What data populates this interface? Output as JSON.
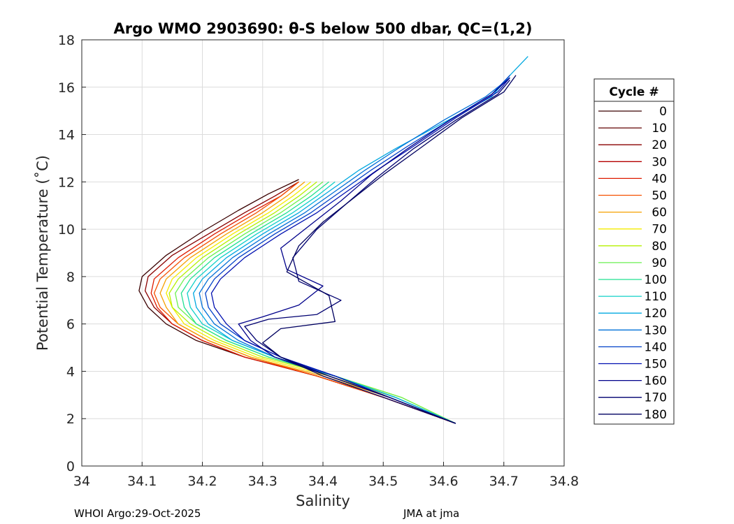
{
  "chart_data": {
    "type": "line",
    "title": "Argo WMO 2903690: θ-S below 500 dbar,  QC=(1,2)",
    "xlabel": "Salinity",
    "ylabel": "Potential Temperature (˚C)",
    "xlim": [
      34,
      34.8
    ],
    "ylim": [
      0,
      18
    ],
    "xticks": [
      "34",
      "34.1",
      "34.2",
      "34.3",
      "34.4",
      "34.5",
      "34.6",
      "34.7",
      "34.8"
    ],
    "yticks": [
      "0",
      "2",
      "4",
      "6",
      "8",
      "10",
      "12",
      "14",
      "16",
      "18"
    ],
    "grid": true,
    "legend": {
      "title": "Cycle #",
      "placement": "right-outside",
      "entries": [
        "0",
        "10",
        "20",
        "30",
        "40",
        "50",
        "60",
        "70",
        "80",
        "90",
        "100",
        "110",
        "120",
        "130",
        "140",
        "150",
        "160",
        "170",
        "180"
      ],
      "colors": [
        "#3a0000",
        "#600000",
        "#8a0000",
        "#b40000",
        "#de1a00",
        "#f55000",
        "#f5a000",
        "#f5ec00",
        "#b4f000",
        "#6af050",
        "#20e090",
        "#10d0c8",
        "#00a8e0",
        "#0070d8",
        "#0040c8",
        "#0010b0",
        "#00008a",
        "#000070",
        "#000060"
      ]
    },
    "series_note": "One theta-S profile per cycle (0-180); values traced from the plot",
    "series": [
      {
        "cycle": 0,
        "color": "#3a0000",
        "s": [
          34.62,
          34.5,
          34.39,
          34.27,
          34.19,
          34.14,
          34.11,
          34.095,
          34.1,
          34.14,
          34.2,
          34.26,
          34.31,
          34.36
        ],
        "t": [
          1.8,
          2.9,
          3.8,
          4.6,
          5.3,
          6.0,
          6.7,
          7.4,
          8.0,
          8.9,
          9.9,
          10.8,
          11.5,
          12.1
        ]
      },
      {
        "cycle": 20,
        "color": "#8a0000",
        "s": [
          34.62,
          34.5,
          34.39,
          34.27,
          34.2,
          34.15,
          34.12,
          34.105,
          34.11,
          34.15,
          34.21,
          34.27,
          34.32,
          34.36
        ],
        "t": [
          1.8,
          2.9,
          3.8,
          4.6,
          5.3,
          6.0,
          6.7,
          7.4,
          8.0,
          8.9,
          9.8,
          10.7,
          11.4,
          12.0
        ]
      },
      {
        "cycle": 40,
        "color": "#de1a00",
        "s": [
          34.62,
          34.5,
          34.39,
          34.27,
          34.2,
          34.15,
          34.125,
          34.115,
          34.12,
          34.16,
          34.22,
          34.28,
          34.33,
          34.36
        ],
        "t": [
          1.8,
          2.9,
          3.8,
          4.6,
          5.3,
          6.0,
          6.7,
          7.3,
          7.9,
          8.8,
          9.8,
          10.7,
          11.4,
          12.0
        ]
      },
      {
        "cycle": 50,
        "color": "#f55000",
        "s": [
          34.62,
          34.5,
          34.39,
          34.28,
          34.21,
          34.16,
          34.13,
          34.12,
          34.13,
          34.17,
          34.23,
          34.29,
          34.33,
          34.36
        ],
        "t": [
          1.8,
          2.9,
          3.8,
          4.6,
          5.3,
          6.0,
          6.7,
          7.3,
          7.9,
          8.8,
          9.8,
          10.7,
          11.4,
          12.0
        ]
      },
      {
        "cycle": 60,
        "color": "#f5a000",
        "s": [
          34.62,
          34.51,
          34.4,
          34.28,
          34.21,
          34.16,
          34.14,
          34.13,
          34.14,
          34.18,
          34.24,
          34.3,
          34.34,
          34.37
        ],
        "t": [
          1.8,
          2.9,
          3.8,
          4.6,
          5.3,
          6.0,
          6.7,
          7.3,
          7.9,
          8.8,
          9.8,
          10.7,
          11.4,
          12.0
        ]
      },
      {
        "cycle": 70,
        "color": "#f5ec00",
        "s": [
          34.62,
          34.52,
          34.41,
          34.29,
          34.22,
          34.17,
          34.15,
          34.14,
          34.15,
          34.19,
          34.25,
          34.31,
          34.35,
          34.38
        ],
        "t": [
          1.8,
          2.9,
          3.8,
          4.6,
          5.3,
          6.0,
          6.7,
          7.3,
          7.9,
          8.8,
          9.8,
          10.7,
          11.4,
          12.0
        ]
      },
      {
        "cycle": 80,
        "color": "#b4f000",
        "s": [
          34.62,
          34.53,
          34.42,
          34.3,
          34.23,
          34.18,
          34.15,
          34.145,
          34.16,
          34.2,
          34.26,
          34.32,
          34.36,
          34.39
        ],
        "t": [
          1.8,
          2.9,
          3.8,
          4.6,
          5.3,
          6.0,
          6.7,
          7.3,
          7.9,
          8.8,
          9.8,
          10.7,
          11.4,
          12.0
        ]
      },
      {
        "cycle": 90,
        "color": "#6af050",
        "s": [
          34.62,
          34.53,
          34.42,
          34.31,
          34.24,
          34.19,
          34.16,
          34.155,
          34.17,
          34.21,
          34.27,
          34.33,
          34.37,
          34.4
        ],
        "t": [
          1.8,
          2.9,
          3.8,
          4.6,
          5.3,
          6.0,
          6.7,
          7.3,
          7.9,
          8.8,
          9.8,
          10.7,
          11.4,
          12.0
        ]
      },
      {
        "cycle": 100,
        "color": "#20e090",
        "s": [
          34.62,
          34.52,
          34.42,
          34.31,
          34.24,
          34.19,
          34.17,
          34.165,
          34.18,
          34.22,
          34.28,
          34.34,
          34.38,
          34.41
        ],
        "t": [
          1.8,
          2.9,
          3.8,
          4.6,
          5.3,
          6.0,
          6.7,
          7.3,
          7.9,
          8.8,
          9.8,
          10.7,
          11.4,
          12.0
        ]
      },
      {
        "cycle": 110,
        "color": "#10d0c8",
        "s": [
          34.62,
          34.52,
          34.42,
          34.32,
          34.25,
          34.2,
          34.18,
          34.175,
          34.19,
          34.23,
          34.29,
          34.35,
          34.39,
          34.42
        ],
        "t": [
          1.8,
          2.9,
          3.8,
          4.6,
          5.3,
          6.0,
          6.7,
          7.3,
          7.9,
          8.8,
          9.8,
          10.7,
          11.4,
          12.0
        ]
      },
      {
        "cycle": 120,
        "color": "#00a8e0",
        "s": [
          34.62,
          34.52,
          34.42,
          34.32,
          34.25,
          34.21,
          34.19,
          34.185,
          34.2,
          34.24,
          34.3,
          34.36,
          34.41,
          34.46,
          34.52,
          34.6,
          34.68,
          34.71,
          34.74
        ],
        "t": [
          1.8,
          2.9,
          3.8,
          4.6,
          5.3,
          6.0,
          6.7,
          7.3,
          7.9,
          8.8,
          9.8,
          10.7,
          11.6,
          12.5,
          13.4,
          14.5,
          15.6,
          16.5,
          17.3
        ]
      },
      {
        "cycle": 130,
        "color": "#0070d8",
        "s": [
          34.62,
          34.51,
          34.42,
          34.32,
          34.26,
          34.22,
          34.2,
          34.195,
          34.21,
          34.25,
          34.31,
          34.37,
          34.42,
          34.47,
          34.53,
          34.6,
          34.67,
          34.71
        ],
        "t": [
          1.8,
          2.9,
          3.8,
          4.6,
          5.3,
          6.0,
          6.7,
          7.3,
          7.9,
          8.8,
          9.8,
          10.7,
          11.6,
          12.5,
          13.5,
          14.6,
          15.6,
          16.4
        ]
      },
      {
        "cycle": 140,
        "color": "#0040c8",
        "s": [
          34.62,
          34.51,
          34.42,
          34.33,
          34.27,
          34.23,
          34.21,
          34.205,
          34.22,
          34.26,
          34.32,
          34.38,
          34.43,
          34.48,
          34.54,
          34.61,
          34.68,
          34.71
        ],
        "t": [
          1.8,
          2.9,
          3.8,
          4.6,
          5.3,
          6.0,
          6.7,
          7.3,
          7.9,
          8.8,
          9.8,
          10.7,
          11.6,
          12.5,
          13.5,
          14.6,
          15.7,
          16.5
        ]
      },
      {
        "cycle": 150,
        "color": "#0010b0",
        "s": [
          34.62,
          34.51,
          34.42,
          34.33,
          34.27,
          34.24,
          34.22,
          34.215,
          34.23,
          34.27,
          34.33,
          34.39,
          34.44,
          34.49,
          34.55,
          34.62,
          34.69,
          34.71
        ],
        "t": [
          1.8,
          2.9,
          3.8,
          4.6,
          5.3,
          6.0,
          6.7,
          7.3,
          7.9,
          8.8,
          9.8,
          10.7,
          11.6,
          12.5,
          13.5,
          14.7,
          15.8,
          16.4
        ]
      },
      {
        "cycle": 160,
        "color": "#00008a",
        "s": [
          34.62,
          34.51,
          34.41,
          34.32,
          34.28,
          34.26,
          34.3,
          34.36,
          34.4,
          34.34,
          34.33,
          34.38,
          34.43,
          34.48,
          34.54,
          34.61,
          34.68,
          34.71
        ],
        "t": [
          1.8,
          2.9,
          3.8,
          4.6,
          5.3,
          6.0,
          6.3,
          6.8,
          7.6,
          8.3,
          9.2,
          10.2,
          11.2,
          12.3,
          13.4,
          14.6,
          15.7,
          16.4
        ]
      },
      {
        "cycle": 170,
        "color": "#000070",
        "s": [
          34.62,
          34.51,
          34.41,
          34.33,
          34.29,
          34.27,
          34.31,
          34.39,
          34.43,
          34.36,
          34.35,
          34.39,
          34.44,
          34.49,
          34.55,
          34.62,
          34.69,
          34.71
        ],
        "t": [
          1.8,
          2.9,
          3.8,
          4.6,
          5.3,
          5.9,
          6.2,
          6.4,
          7.0,
          7.8,
          8.8,
          10.0,
          11.1,
          12.2,
          13.4,
          14.6,
          15.7,
          16.3
        ]
      },
      {
        "cycle": 180,
        "color": "#000060",
        "s": [
          34.62,
          34.5,
          34.4,
          34.33,
          34.3,
          34.33,
          34.42,
          34.41,
          34.34,
          34.36,
          34.4,
          34.45,
          34.5,
          34.56,
          34.63,
          34.7,
          34.72
        ],
        "t": [
          1.8,
          2.9,
          3.8,
          4.6,
          5.2,
          5.8,
          6.1,
          7.2,
          8.2,
          9.3,
          10.3,
          11.3,
          12.3,
          13.4,
          14.7,
          15.8,
          16.5
        ]
      }
    ]
  },
  "footer": {
    "left": "WHOI Argo:29-Oct-2025",
    "right": "JMA at jma"
  }
}
